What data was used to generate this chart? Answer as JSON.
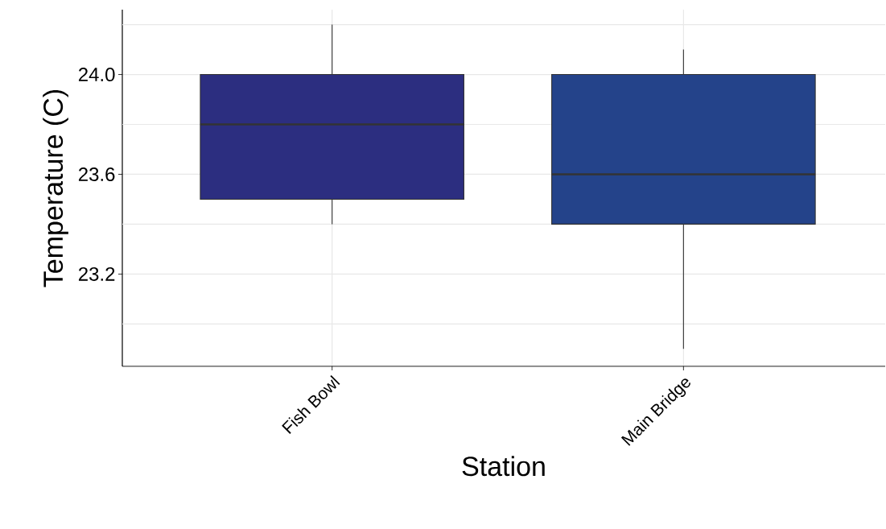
{
  "chart_data": {
    "type": "box",
    "xlabel": "Station",
    "ylabel": "Temperature (C)",
    "categories": [
      "Fish Bowl",
      "Main Bridge"
    ],
    "boxes": [
      {
        "low": 23.4,
        "q1": 23.5,
        "median": 23.8,
        "q3": 24.0,
        "high": 24.2
      },
      {
        "low": 22.9,
        "q1": 23.4,
        "median": 23.6,
        "q3": 24.0,
        "high": 24.1
      }
    ],
    "colors": [
      "#2c2e80",
      "#24438a"
    ],
    "ylim": [
      22.83,
      24.26
    ],
    "yticks": [
      {
        "value": 23.0,
        "label": null
      },
      {
        "value": 23.2,
        "label": "23.2"
      },
      {
        "value": 23.4,
        "label": null
      },
      {
        "value": 23.6,
        "label": "23.6"
      },
      {
        "value": 23.8,
        "label": null
      },
      {
        "value": 24.0,
        "label": "24.0"
      },
      {
        "value": 24.2,
        "label": null
      }
    ],
    "grid": true
  }
}
